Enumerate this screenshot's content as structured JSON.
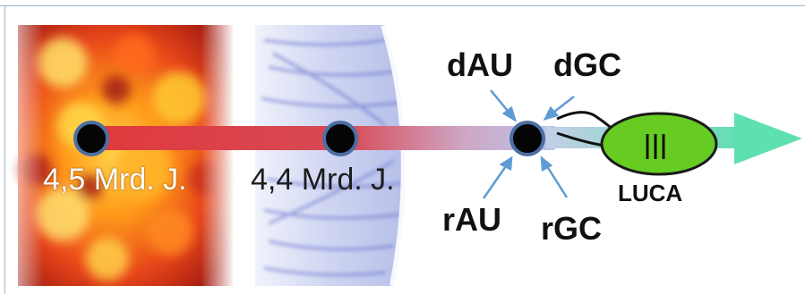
{
  "timeline": {
    "label_early": "4,5 Mrd. J.",
    "label_late": "4,4 Mrd. J."
  },
  "molecules": {
    "dAU": "dAU",
    "dGC": "dGC",
    "rAU": "rAU",
    "rGC": "rGC"
  },
  "organism": {
    "name": "LUCA",
    "cell_color": "#66cc22"
  },
  "colors": {
    "timeline_red": "#e0393c",
    "arrowhead_teal": "#5fe0b0",
    "pointer_arrow": "#5f9bd3",
    "node_fill": "#050505",
    "node_ring": "#4a6fa3"
  }
}
